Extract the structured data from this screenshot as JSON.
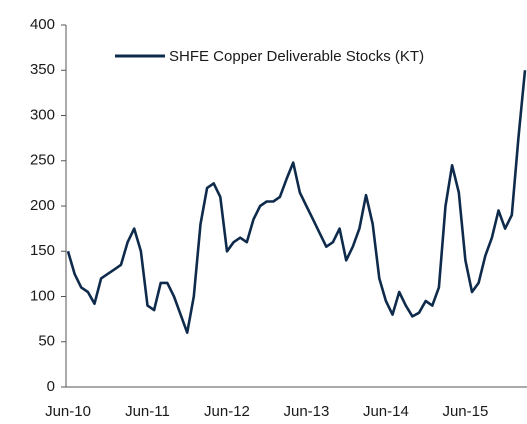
{
  "chart_data": {
    "type": "line",
    "categories": [
      "Jun-10",
      "Jul-10",
      "Aug-10",
      "Sep-10",
      "Oct-10",
      "Nov-10",
      "Dec-10",
      "Jan-11",
      "Feb-11",
      "Mar-11",
      "Apr-11",
      "May-11",
      "Jun-11",
      "Jul-11",
      "Aug-11",
      "Sep-11",
      "Oct-11",
      "Nov-11",
      "Dec-11",
      "Jan-12",
      "Feb-12",
      "Mar-12",
      "Apr-12",
      "May-12",
      "Jun-12",
      "Jul-12",
      "Aug-12",
      "Sep-12",
      "Oct-12",
      "Nov-12",
      "Dec-12",
      "Jan-13",
      "Feb-13",
      "Mar-13",
      "Apr-13",
      "May-13",
      "Jun-13",
      "Jul-13",
      "Aug-13",
      "Sep-13",
      "Oct-13",
      "Nov-13",
      "Dec-13",
      "Jan-14",
      "Feb-14",
      "Mar-14",
      "Apr-14",
      "May-14",
      "Jun-14",
      "Jul-14",
      "Aug-14",
      "Sep-14",
      "Oct-14",
      "Nov-14",
      "Dec-14",
      "Jan-15",
      "Feb-15",
      "Mar-15",
      "Apr-15",
      "May-15",
      "Jun-15",
      "Jul-15",
      "Aug-15",
      "Sep-15",
      "Oct-15",
      "Nov-15",
      "Dec-15",
      "Jan-16",
      "Feb-16",
      "Mar-16"
    ],
    "xticks": [
      "Jun-10",
      "Jun-11",
      "Jun-12",
      "Jun-13",
      "Jun-14",
      "Jun-15"
    ],
    "series": [
      {
        "name": "SHFE Copper Deliverable Stocks (KT)",
        "color": "#0f2b4c",
        "values": [
          150,
          125,
          110,
          105,
          92,
          120,
          125,
          130,
          135,
          160,
          175,
          150,
          90,
          85,
          115,
          115,
          100,
          80,
          60,
          100,
          180,
          220,
          225,
          210,
          150,
          160,
          165,
          160,
          185,
          200,
          205,
          205,
          210,
          230,
          248,
          215,
          200,
          185,
          170,
          155,
          160,
          175,
          140,
          155,
          175,
          212,
          180,
          120,
          95,
          80,
          105,
          90,
          78,
          82,
          95,
          90,
          110,
          200,
          245,
          215,
          140,
          105,
          115,
          145,
          165,
          195,
          175,
          190,
          275,
          350
        ]
      }
    ],
    "ylim": [
      0,
      400
    ],
    "yticks": [
      0,
      50,
      100,
      150,
      200,
      250,
      300,
      350,
      400
    ]
  }
}
